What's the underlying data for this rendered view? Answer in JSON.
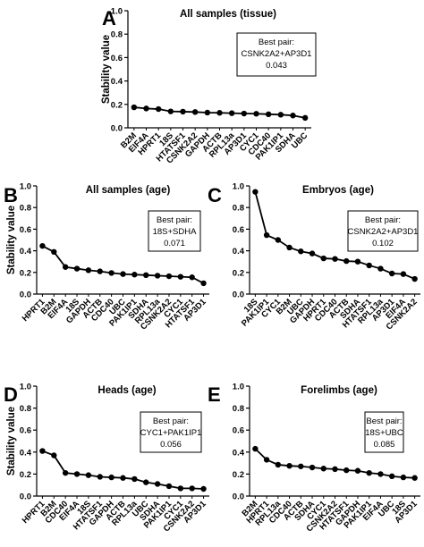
{
  "figure": {
    "ylabel": "Stability value",
    "yticks": [
      "0.0",
      "0.2",
      "0.4",
      "0.6",
      "0.8",
      "1.0"
    ],
    "best_pair_label": "Best pair:"
  },
  "chart_data": [
    {
      "type": "line",
      "panel_letter": "A",
      "title": "All samples (tissue)",
      "ylabel": "Stability value",
      "ylim": [
        0,
        1.0
      ],
      "categories": [
        "B2M",
        "EIF4A",
        "HPRT1",
        "18S",
        "HTATSF1",
        "CSNK2A2",
        "GAPDH",
        "ACTB",
        "RPL13a",
        "AP3D1",
        "CYC1",
        "CDC40",
        "PAK1IP1",
        "SDHA",
        "UBC"
      ],
      "values": [
        0.175,
        0.165,
        0.16,
        0.14,
        0.138,
        0.135,
        0.13,
        0.128,
        0.125,
        0.122,
        0.12,
        0.116,
        0.112,
        0.105,
        0.085
      ],
      "best_pair": "CSNK2A2+AP3D1",
      "best_value": "0.043"
    },
    {
      "type": "line",
      "panel_letter": "B",
      "title": "All samples (age)",
      "ylabel": "Stability value",
      "ylim": [
        0,
        1.0
      ],
      "categories": [
        "HPRT1",
        "B2M",
        "EIF4A",
        "18S",
        "GAPDH",
        "ACTB",
        "CDC40",
        "UBC",
        "PAK1IP1",
        "SDHA",
        "RPL13a",
        "CSNK2A2",
        "CYC1",
        "HTATSF1",
        "AP3D1"
      ],
      "values": [
        0.445,
        0.39,
        0.25,
        0.235,
        0.22,
        0.21,
        0.195,
        0.185,
        0.18,
        0.175,
        0.17,
        0.165,
        0.16,
        0.155,
        0.1
      ],
      "best_pair": "18S+SDHA",
      "best_value": "0.071"
    },
    {
      "type": "line",
      "panel_letter": "C",
      "title": "Embryos (age)",
      "ylabel": "",
      "ylim": [
        0,
        1.0
      ],
      "categories": [
        "18S",
        "PAK1IP1",
        "CYC1",
        "B2M",
        "UBC",
        "GAPDH",
        "HPRT1",
        "CDC40",
        "ACTB",
        "SDHA",
        "HTATSF1",
        "RPL13a",
        "AP3D1",
        "EIF4A",
        "CSNK2A2"
      ],
      "values": [
        0.945,
        0.545,
        0.5,
        0.43,
        0.395,
        0.375,
        0.33,
        0.325,
        0.305,
        0.3,
        0.265,
        0.235,
        0.19,
        0.185,
        0.14
      ],
      "best_pair": "CSNK2A2+AP3D1",
      "best_value": "0.102"
    },
    {
      "type": "line",
      "panel_letter": "D",
      "title": "Heads (age)",
      "ylabel": "Stability value",
      "ylim": [
        0,
        1.0
      ],
      "categories": [
        "HPRT1",
        "B2M",
        "CDC40",
        "EIF4A",
        "18S",
        "HTATSF1",
        "GAPDH",
        "ACTB",
        "RPL13a",
        "UBC",
        "SDHA",
        "PAK1IP1",
        "CYC1",
        "CSNK2A2",
        "AP3D1"
      ],
      "values": [
        0.41,
        0.37,
        0.21,
        0.2,
        0.19,
        0.175,
        0.17,
        0.165,
        0.155,
        0.125,
        0.11,
        0.09,
        0.07,
        0.07,
        0.065
      ],
      "best_pair": "CYC1+PAK1IP1",
      "best_value": "0.056"
    },
    {
      "type": "line",
      "panel_letter": "E",
      "title": "Forelimbs (age)",
      "ylabel": "",
      "ylim": [
        0,
        1.0
      ],
      "categories": [
        "B2M",
        "HPRT1",
        "RPL13a",
        "CDC40",
        "ACTB",
        "SDHA",
        "CYC1",
        "CSNK2A2",
        "HTATSF1",
        "GAPDH",
        "PAK1IP1",
        "EIF4A",
        "UBC",
        "18S",
        "AP3D1"
      ],
      "values": [
        0.43,
        0.33,
        0.285,
        0.275,
        0.27,
        0.26,
        0.25,
        0.245,
        0.235,
        0.23,
        0.21,
        0.2,
        0.18,
        0.17,
        0.165
      ],
      "best_pair": "18S+UBC",
      "best_value": "0.085"
    }
  ]
}
